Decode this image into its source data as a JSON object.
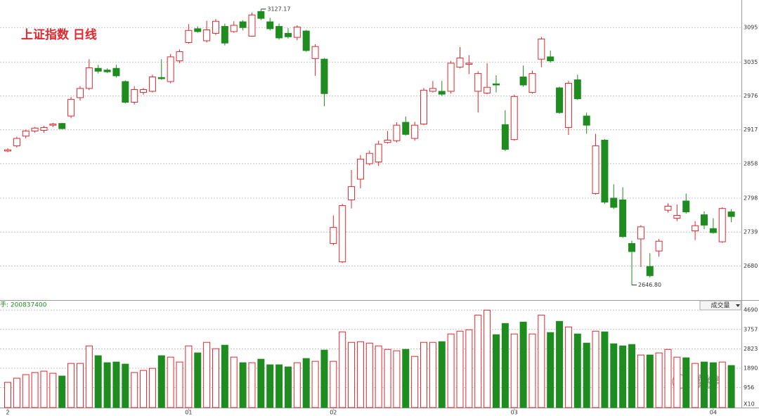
{
  "chart_data": {
    "type": "candlestick",
    "title": "上证指数  日线",
    "categories": [
      "2",
      null,
      null,
      null,
      null,
      null,
      null,
      null,
      null,
      null,
      null,
      null,
      null,
      null,
      null,
      null,
      null,
      null,
      null,
      null,
      "01",
      null,
      null,
      null,
      null,
      null,
      null,
      null,
      null,
      null,
      null,
      null,
      null,
      null,
      null,
      null,
      "02",
      null,
      null,
      null,
      null,
      null,
      null,
      null,
      null,
      null,
      null,
      null,
      null,
      null,
      null,
      null,
      null,
      null,
      null,
      null,
      "03",
      null,
      null,
      null,
      null,
      null,
      null,
      null,
      null,
      null,
      null,
      null,
      null,
      null,
      null,
      null,
      null,
      null,
      null,
      null,
      null,
      null,
      "04",
      null,
      null
    ],
    "open": [
      2880,
      2889,
      2906,
      2915,
      2916,
      2925,
      2928,
      2941,
      2973,
      2989,
      3024,
      3021,
      3024,
      3001,
      2965,
      2982,
      2984,
      3008,
      3001,
      3037,
      3069,
      3093,
      3072,
      3085,
      3097,
      3088,
      3105,
      3080,
      3123,
      3105,
      3097,
      3085,
      3078,
      3089,
      3041,
      3040,
      2719,
      2687,
      2795,
      2831,
      2858,
      2861,
      2895,
      2898,
      2930,
      2902,
      2927,
      2984,
      2984,
      2984,
      3026,
      3031,
      2984,
      2981,
      2997,
      2926,
      2900,
      3009,
      2982,
      3040,
      3044,
      2990,
      2921,
      3004,
      2941,
      2806,
      2899,
      2798,
      2795,
      2719,
      2727,
      2679,
      2706,
      2777,
      2763,
      2793,
      2741,
      2769,
      2745,
      2722,
      2774
    ],
    "high": [
      2885,
      2905,
      2917,
      2922,
      2924,
      2929,
      2929,
      2974,
      2993,
      3040,
      3030,
      3024,
      3030,
      3003,
      2993,
      2990,
      3013,
      3040,
      3049,
      3057,
      3101,
      3097,
      3107,
      3110,
      3102,
      3106,
      3108,
      3121,
      3127.17,
      3112,
      3102,
      3094,
      3099,
      3091,
      3066,
      3042,
      2768,
      2788,
      2847,
      2873,
      2881,
      2898,
      2915,
      2930,
      2940,
      2931,
      2990,
      3002,
      3002,
      3037,
      3061,
      3047,
      3019,
      3033,
      3012,
      2951,
      2978,
      3029,
      3020,
      3079,
      3055,
      2992,
      3002,
      3013,
      2947,
      2910,
      2901,
      2822,
      2817,
      2724,
      2751,
      2702,
      2727,
      2789,
      2787,
      2806,
      2758,
      2775,
      2763,
      2782,
      2779
    ],
    "low": [
      2878,
      2886,
      2902,
      2912,
      2912,
      2922,
      2918,
      2937,
      2968,
      2986,
      3015,
      3016,
      3008,
      2963,
      2961,
      2978,
      2982,
      3004,
      2998,
      3033,
      3067,
      3086,
      3069,
      3082,
      3064,
      3086,
      3090,
      3079,
      3108,
      3090,
      3074,
      3076,
      3073,
      3053,
      3011,
      2958,
      2716,
      2685,
      2780,
      2815,
      2855,
      2854,
      2893,
      2895,
      2907,
      2898,
      2925,
      2982,
      2976,
      2980,
      3024,
      3014,
      2947,
      2979,
      2982,
      2880,
      2898,
      2992,
      2980,
      3026,
      3034,
      2945,
      2908,
      2969,
      2910,
      2804,
      2788,
      2779,
      2729,
      2646.8,
      2678,
      2660,
      2696,
      2773,
      2758,
      2771,
      2725,
      2744,
      2736,
      2720,
      2756
    ],
    "close": [
      2882,
      2902,
      2915,
      2920,
      2921,
      2927,
      2919,
      2970,
      2989,
      3025,
      3019,
      3018,
      3011,
      2965,
      2987,
      2987,
      3009,
      3006,
      3044,
      3053,
      3090,
      3088,
      3091,
      3106,
      3068,
      3099,
      3095,
      3117,
      3111,
      3093,
      3077,
      3079,
      3096,
      3055,
      3062,
      2980,
      2747,
      2785,
      2818,
      2866,
      2876,
      2892,
      2899,
      2925,
      2909,
      2925,
      2986,
      2989,
      2979,
      3033,
      3042,
      3033,
      3015,
      2991,
      2995,
      2883,
      2975,
      2995,
      3015,
      3075,
      3037,
      2947,
      2998,
      2971,
      2925,
      2889,
      2791,
      2782,
      2731,
      2705,
      2748,
      2663,
      2723,
      2784,
      2768,
      2774,
      2750,
      2751,
      2738,
      2780,
      2766
    ],
    "up_color": "#e0282e",
    "down_color": "#1e8c1e",
    "ylim": [
      2623,
      3143
    ],
    "yticks": [
      3095,
      3035,
      2976,
      2917,
      2858,
      2798,
      2739,
      2680
    ],
    "grid": true,
    "annotations": [
      {
        "text": "3127.17"
      },
      {
        "text": "2646.80"
      }
    ],
    "volume": {
      "label": "成交量",
      "total_label": "手: 200837400",
      "scale_label": "X10",
      "values": [
        1213,
        1415,
        1584,
        1685,
        1752,
        1651,
        1516,
        2123,
        2123,
        2966,
        2494,
        2157,
        2190,
        2089,
        1685,
        1786,
        1887,
        2494,
        2426,
        2190,
        2966,
        2629,
        3134,
        2831,
        2999,
        2426,
        2157,
        2157,
        2325,
        2056,
        2056,
        1955,
        2157,
        2359,
        2224,
        2763,
        2224,
        3640,
        3134,
        3168,
        3100,
        2966,
        2797,
        2730,
        2797,
        2460,
        3134,
        3134,
        3168,
        3539,
        3673,
        3741,
        4448,
        4684,
        3505,
        4044,
        3539,
        4111,
        3539,
        4448,
        3606,
        4145,
        3876,
        3539,
        3100,
        3673,
        3640,
        3067,
        2966,
        3033,
        2528,
        2528,
        2629,
        2797,
        2426,
        2393,
        2123,
        2190,
        2157,
        2190,
        2022
      ],
      "ylim": [
        0,
        5135
      ],
      "yticks": [
        4690,
        3757,
        2823,
        1890,
        956
      ]
    },
    "watermark": "姚尧"
  }
}
